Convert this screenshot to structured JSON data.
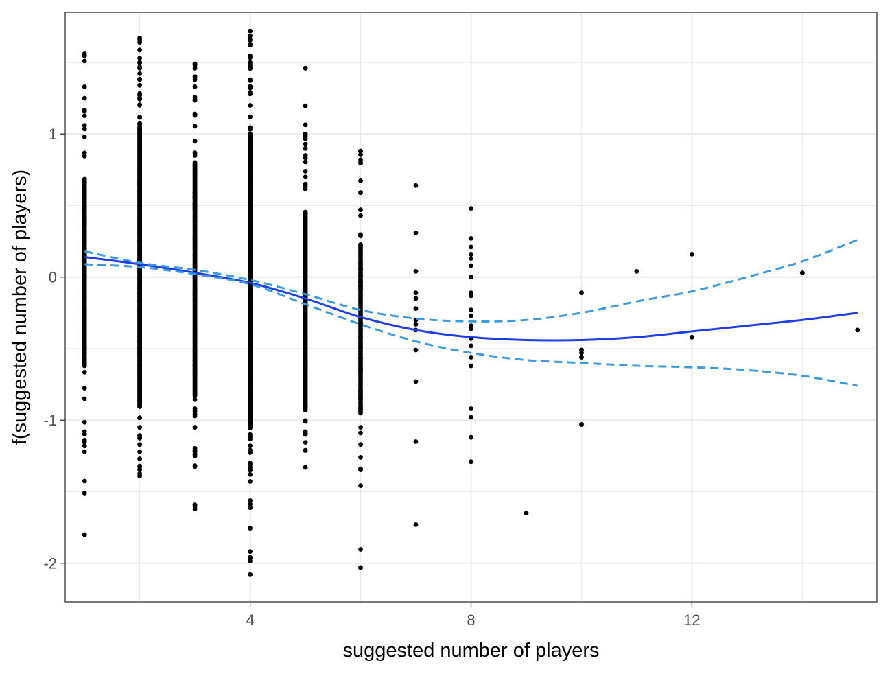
{
  "chart_data": {
    "type": "scatter",
    "title": "",
    "xlabel": "suggested number of players",
    "ylabel": "f(suggested number of players)",
    "xlim": [
      0.65,
      15.35
    ],
    "ylim": [
      -2.27,
      1.85
    ],
    "x_ticks": [
      4,
      8,
      12
    ],
    "y_ticks": [
      -2,
      -1,
      0,
      1
    ],
    "x_tick_labels": [
      "4",
      "8",
      "12"
    ],
    "y_tick_labels": [
      "-2",
      "-1",
      "0",
      "1"
    ],
    "grid": true,
    "legend": "none",
    "colors": {
      "points": "#000000",
      "fit": "#1f3fe6",
      "ci": "#3a9be0",
      "grid": "#ebebeb",
      "panel_border": "#333333"
    },
    "point_columns": [
      {
        "x": 1,
        "min": -1.8,
        "max": 1.56,
        "n": 120,
        "dense_min": -0.62,
        "dense_max": 0.68,
        "outliers": [
          1.56,
          1.51,
          -1.8,
          -1.51,
          -1.18,
          -1.14,
          -1.08,
          -0.85,
          1.33,
          1.25,
          1.16,
          1.06
        ]
      },
      {
        "x": 2,
        "min": -1.39,
        "max": 1.67,
        "n": 450,
        "dense_min": -0.9,
        "dense_max": 1.05,
        "outliers": [
          1.67,
          1.64,
          1.5,
          1.46,
          -1.39,
          -1.27,
          -1.22,
          -1.17,
          1.38,
          1.34,
          1.27
        ]
      },
      {
        "x": 3,
        "min": -1.62,
        "max": 1.49,
        "n": 300,
        "dense_min": -0.82,
        "dense_max": 0.8,
        "outliers": [
          1.49,
          1.46,
          1.4,
          1.38,
          1.33,
          -1.62,
          -1.22,
          -1.05,
          -0.97,
          -0.92,
          1.24,
          1.13
        ]
      },
      {
        "x": 4,
        "min": -2.08,
        "max": 1.72,
        "n": 380,
        "dense_min": -1.05,
        "dense_max": 1.0,
        "outliers": [
          1.72,
          1.5,
          1.33,
          -2.08,
          -1.38,
          -1.35,
          -1.33,
          -1.3,
          -1.21,
          -1.18,
          -1.1,
          1.28,
          1.2,
          1.12
        ]
      },
      {
        "x": 5,
        "min": -1.33,
        "max": 1.46,
        "n": 180,
        "dense_min": -0.93,
        "dense_max": 0.45,
        "outliers": [
          1.46,
          1.0,
          0.85,
          -1.33,
          -1.21,
          -1.1,
          -1.08,
          0.74,
          0.7,
          0.65
        ]
      },
      {
        "x": 6,
        "min": -2.03,
        "max": 0.88,
        "n": 110,
        "dense_min": -0.95,
        "dense_max": 0.22,
        "outliers": [
          0.88,
          0.82,
          0.8,
          0.59,
          -2.03,
          -1.34,
          -1.26,
          -1.17,
          -1.09,
          -1.05,
          0.47,
          0.43
        ]
      },
      {
        "x": 7,
        "values": [
          0.64,
          0.31,
          0.04,
          -0.11,
          -0.15,
          -0.22,
          -0.3,
          -0.33,
          -0.37,
          -0.51,
          -0.73,
          -1.15,
          -1.73
        ]
      },
      {
        "x": 8,
        "values": [
          0.48,
          0.27,
          0.21,
          0.16,
          0.13,
          0.08,
          0.0,
          -0.11,
          -0.13,
          -0.23,
          -0.27,
          -0.34,
          -0.36,
          -0.43,
          -0.48,
          -0.56,
          -0.62,
          -0.92,
          -0.98,
          -1.12,
          -1.29
        ]
      },
      {
        "x": 9,
        "values": [
          -1.65
        ]
      },
      {
        "x": 10,
        "values": [
          -0.11,
          -0.51,
          -0.53,
          -0.56,
          -1.03
        ]
      },
      {
        "x": 11,
        "values": [
          0.04
        ]
      },
      {
        "x": 12,
        "values": [
          0.16,
          -0.42
        ]
      },
      {
        "x": 14,
        "values": [
          0.03
        ]
      },
      {
        "x": 15,
        "values": [
          -0.37
        ]
      }
    ],
    "series": [
      {
        "kind": "fit",
        "x": [
          1,
          2,
          3,
          4,
          5,
          6,
          7,
          8,
          9,
          10,
          11,
          12,
          13,
          14,
          15
        ],
        "y": [
          0.14,
          0.09,
          0.03,
          -0.04,
          -0.15,
          -0.28,
          -0.37,
          -0.42,
          -0.44,
          -0.44,
          -0.42,
          -0.38,
          -0.34,
          -0.3,
          -0.25
        ]
      },
      {
        "kind": "ci-upper",
        "x": [
          1,
          2,
          3,
          4,
          5,
          6,
          7,
          8,
          9,
          10,
          11,
          12,
          13,
          14,
          15
        ],
        "y": [
          0.18,
          0.1,
          0.05,
          -0.02,
          -0.12,
          -0.23,
          -0.29,
          -0.31,
          -0.3,
          -0.25,
          -0.17,
          -0.1,
          0.0,
          0.11,
          0.26
        ]
      },
      {
        "kind": "ci-lower",
        "x": [
          1,
          2,
          3,
          4,
          5,
          6,
          7,
          8,
          9,
          10,
          11,
          12,
          13,
          14,
          15
        ],
        "y": [
          0.09,
          0.07,
          0.02,
          -0.05,
          -0.19,
          -0.33,
          -0.45,
          -0.53,
          -0.58,
          -0.6,
          -0.62,
          -0.63,
          -0.65,
          -0.69,
          -0.76
        ]
      }
    ]
  }
}
